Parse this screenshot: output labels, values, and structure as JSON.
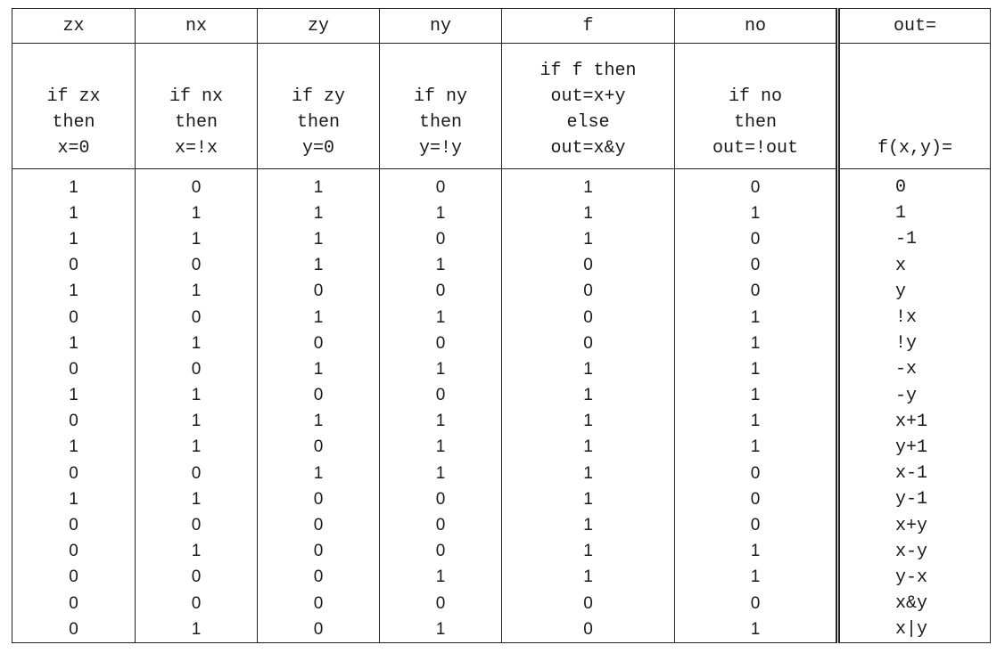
{
  "columns": [
    {
      "key": "zx",
      "name": "zx",
      "desc": [
        "if zx",
        "then",
        "x=0"
      ]
    },
    {
      "key": "nx",
      "name": "nx",
      "desc": [
        "if nx",
        "then",
        "x=!x"
      ]
    },
    {
      "key": "zy",
      "name": "zy",
      "desc": [
        "if zy",
        "then",
        "y=0"
      ]
    },
    {
      "key": "ny",
      "name": "ny",
      "desc": [
        "if ny",
        "then",
        "y=!y"
      ]
    },
    {
      "key": "f",
      "name": "f",
      "desc": [
        "if f then",
        "out=x+y",
        "else",
        "out=x&y"
      ]
    },
    {
      "key": "no",
      "name": "no",
      "desc": [
        "if no",
        "then",
        "out=!out"
      ]
    }
  ],
  "out_column": {
    "name": "out=",
    "desc": [
      "f(x,y)="
    ]
  },
  "rows": [
    {
      "zx": "1",
      "nx": "0",
      "zy": "1",
      "ny": "0",
      "f": "1",
      "no": "0",
      "out": "0"
    },
    {
      "zx": "1",
      "nx": "1",
      "zy": "1",
      "ny": "1",
      "f": "1",
      "no": "1",
      "out": "1"
    },
    {
      "zx": "1",
      "nx": "1",
      "zy": "1",
      "ny": "0",
      "f": "1",
      "no": "0",
      "out": "-1"
    },
    {
      "zx": "0",
      "nx": "0",
      "zy": "1",
      "ny": "1",
      "f": "0",
      "no": "0",
      "out": "x"
    },
    {
      "zx": "1",
      "nx": "1",
      "zy": "0",
      "ny": "0",
      "f": "0",
      "no": "0",
      "out": "y"
    },
    {
      "zx": "0",
      "nx": "0",
      "zy": "1",
      "ny": "1",
      "f": "0",
      "no": "1",
      "out": "!x"
    },
    {
      "zx": "1",
      "nx": "1",
      "zy": "0",
      "ny": "0",
      "f": "0",
      "no": "1",
      "out": "!y"
    },
    {
      "zx": "0",
      "nx": "0",
      "zy": "1",
      "ny": "1",
      "f": "1",
      "no": "1",
      "out": "-x"
    },
    {
      "zx": "1",
      "nx": "1",
      "zy": "0",
      "ny": "0",
      "f": "1",
      "no": "1",
      "out": "-y"
    },
    {
      "zx": "0",
      "nx": "1",
      "zy": "1",
      "ny": "1",
      "f": "1",
      "no": "1",
      "out": "x+1"
    },
    {
      "zx": "1",
      "nx": "1",
      "zy": "0",
      "ny": "1",
      "f": "1",
      "no": "1",
      "out": "y+1"
    },
    {
      "zx": "0",
      "nx": "0",
      "zy": "1",
      "ny": "1",
      "f": "1",
      "no": "0",
      "out": "x-1"
    },
    {
      "zx": "1",
      "nx": "1",
      "zy": "0",
      "ny": "0",
      "f": "1",
      "no": "0",
      "out": "y-1"
    },
    {
      "zx": "0",
      "nx": "0",
      "zy": "0",
      "ny": "0",
      "f": "1",
      "no": "0",
      "out": "x+y"
    },
    {
      "zx": "0",
      "nx": "1",
      "zy": "0",
      "ny": "0",
      "f": "1",
      "no": "1",
      "out": "x-y"
    },
    {
      "zx": "0",
      "nx": "0",
      "zy": "0",
      "ny": "1",
      "f": "1",
      "no": "1",
      "out": "y-x"
    },
    {
      "zx": "0",
      "nx": "0",
      "zy": "0",
      "ny": "0",
      "f": "0",
      "no": "0",
      "out": "x&y"
    },
    {
      "zx": "0",
      "nx": "1",
      "zy": "0",
      "ny": "1",
      "f": "0",
      "no": "1",
      "out": "x|y"
    }
  ]
}
